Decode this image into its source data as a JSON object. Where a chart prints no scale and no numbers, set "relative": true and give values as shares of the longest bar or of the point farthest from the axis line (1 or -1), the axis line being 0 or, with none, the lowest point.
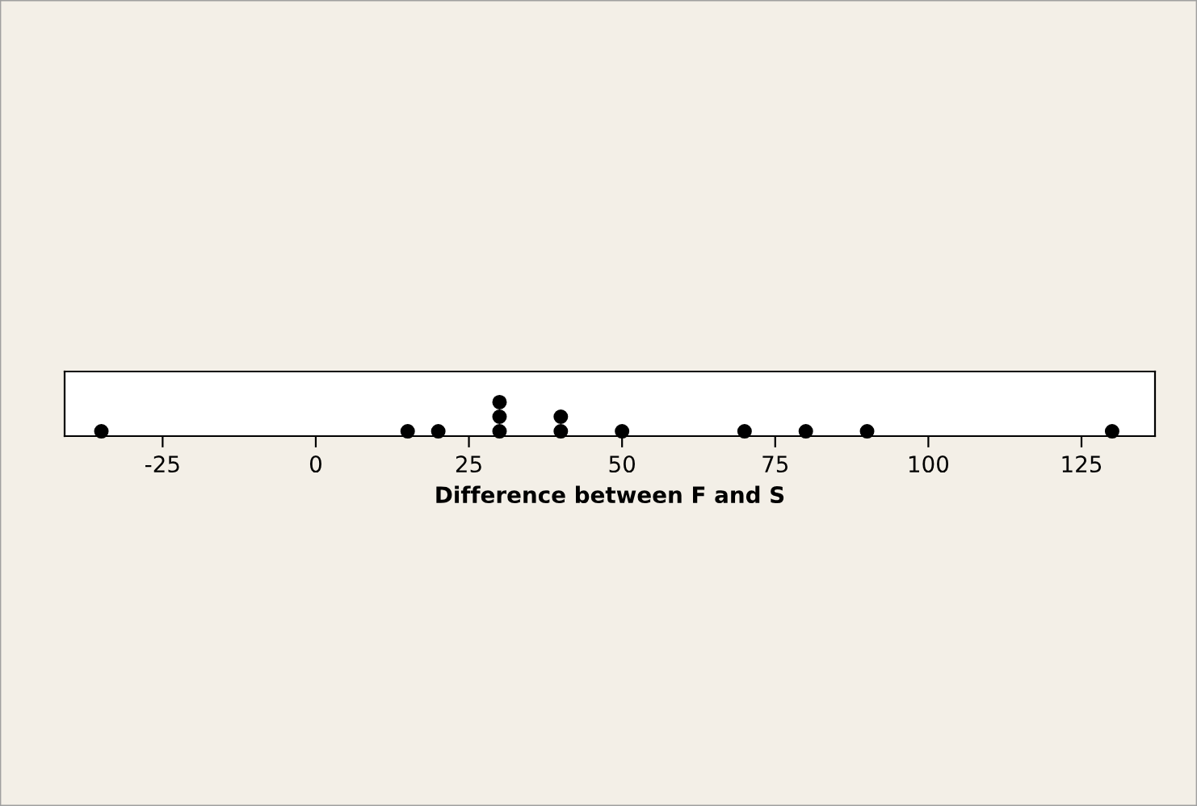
{
  "chart_data": {
    "type": "scatter",
    "xlabel": "Difference between F and S",
    "x": [
      -35,
      15,
      20,
      30,
      30,
      30,
      40,
      40,
      50,
      70,
      80,
      90,
      130
    ],
    "values": [
      0.14,
      0.14,
      0.14,
      0.14,
      0.57,
      1,
      0.14,
      0.57,
      0.14,
      0.14,
      0.14,
      0.14,
      0.14
    ],
    "relative": true,
    "color": "#000000",
    "marker": "circle",
    "xlim": [
      -41,
      137
    ],
    "xticks": [
      -25,
      0,
      25,
      50,
      75,
      100,
      125
    ],
    "tick_labels": "x",
    "grid": false,
    "legend": false
  }
}
